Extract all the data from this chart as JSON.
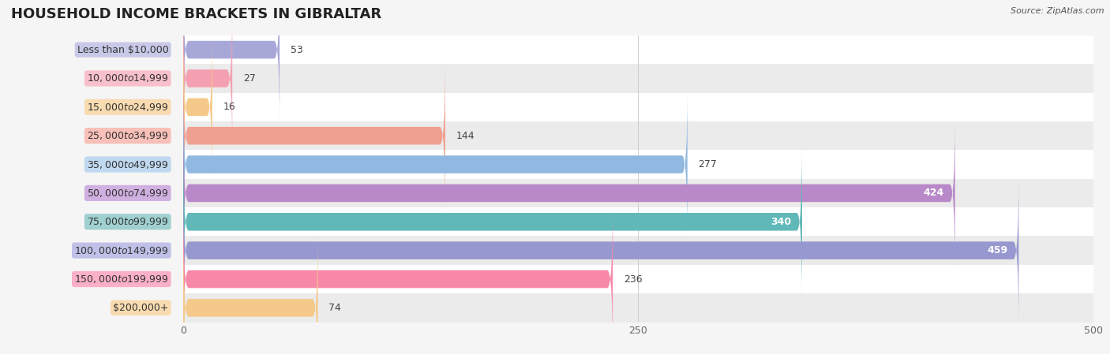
{
  "title": "HOUSEHOLD INCOME BRACKETS IN GIBRALTAR",
  "source": "Source: ZipAtlas.com",
  "categories": [
    "Less than $10,000",
    "$10,000 to $14,999",
    "$15,000 to $24,999",
    "$25,000 to $34,999",
    "$35,000 to $49,999",
    "$50,000 to $74,999",
    "$75,000 to $99,999",
    "$100,000 to $149,999",
    "$150,000 to $199,999",
    "$200,000+"
  ],
  "values": [
    53,
    27,
    16,
    144,
    277,
    424,
    340,
    459,
    236,
    74
  ],
  "bar_colors": [
    "#a8a8d8",
    "#f4a0b0",
    "#f5c98a",
    "#f0a090",
    "#90b8e0",
    "#b888c8",
    "#60b8b8",
    "#9898d0",
    "#f888a8",
    "#f5c98a"
  ],
  "label_bg_colors": [
    "#c8c8e8",
    "#f8c0cc",
    "#f8dbb0",
    "#f8c0b8",
    "#c0d8f0",
    "#d0b0e0",
    "#a0d0d0",
    "#c0c0e8",
    "#fbb0c8",
    "#f8dbb0"
  ],
  "xlim": [
    0,
    500
  ],
  "xticks": [
    0,
    250,
    500
  ],
  "bar_height": 0.62,
  "background_color": "#f5f5f5",
  "title_fontsize": 13,
  "label_fontsize": 9,
  "value_fontsize": 9
}
